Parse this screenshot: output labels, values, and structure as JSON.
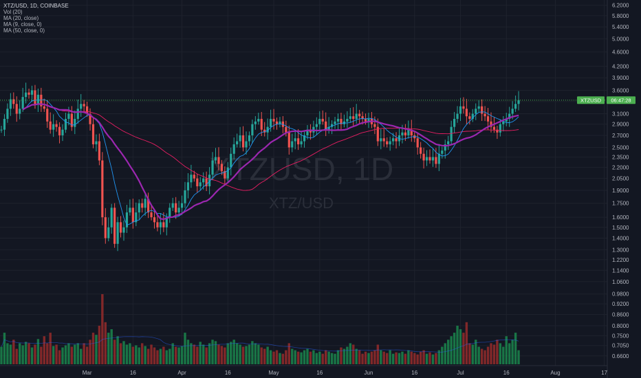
{
  "legend": {
    "title": "XTZ/USD, 1D, COINBASE",
    "vol": "Vol (20)",
    "ma20": "MA (20, close)",
    "ma9": "MA (9, close, 0)",
    "ma50": "MA (50, close, 0)"
  },
  "watermark": {
    "main": "XTZUSD, 1D",
    "sub": "XTZ/USD"
  },
  "price_label": {
    "symbol": "XTZUSD",
    "countdown": "06:47:28",
    "value": 3.38
  },
  "colors": {
    "up": "#26a69a",
    "down": "#ef5350",
    "ma20": "#9c27b0",
    "ma9": "#2196f3",
    "ma50": "#e91e63",
    "bg": "#131722",
    "badge": "#4caf50"
  },
  "chart_data": {
    "type": "candlestick",
    "title": "XTZ/USD, 1D, COINBASE",
    "y_scale": "log",
    "ylim": [
      0.62,
      6.3
    ],
    "y_ticks": [
      6.2,
      5.8,
      5.4,
      5.0,
      4.6,
      4.2,
      3.9,
      3.6,
      3.35,
      3.1,
      2.9,
      2.7,
      2.5,
      2.35,
      2.2,
      2.05,
      1.9,
      1.75,
      1.6,
      1.5,
      1.4,
      1.3,
      1.22,
      1.14,
      1.06,
      0.98,
      0.92,
      0.86,
      0.8,
      0.75,
      0.705,
      0.66
    ],
    "y_tick_labels": [
      "6.2000",
      "5.8000",
      "5.4000",
      "5.0000",
      "4.6000",
      "4.2000",
      "3.9000",
      "3.6000",
      "3.3500",
      "3.1000",
      "2.9000",
      "2.7000",
      "2.5000",
      "2.3500",
      "2.2000",
      "2.0500",
      "1.9000",
      "1.7500",
      "1.6000",
      "1.5000",
      "1.4000",
      "1.3000",
      "1.2200",
      "1.1400",
      "1.0600",
      "0.9800",
      "0.9200",
      "0.8600",
      "0.8000",
      "0.7500",
      "0.7050",
      "0.6600"
    ],
    "x_ticks": [
      {
        "label": "Mar",
        "day": 28
      },
      {
        "label": "16",
        "day": 43
      },
      {
        "label": "Apr",
        "day": 59
      },
      {
        "label": "16",
        "day": 74
      },
      {
        "label": "May",
        "day": 89
      },
      {
        "label": "16",
        "day": 104
      },
      {
        "label": "Jun",
        "day": 120
      },
      {
        "label": "16",
        "day": 135
      },
      {
        "label": "Jul",
        "day": 150
      },
      {
        "label": "16",
        "day": 165
      },
      {
        "label": "Aug",
        "day": 181
      },
      {
        "label": "17",
        "day": 197
      }
    ],
    "start_close": 2.8,
    "closes": [
      2.8,
      3.0,
      3.2,
      3.4,
      3.3,
      3.1,
      3.2,
      3.45,
      3.55,
      3.5,
      3.6,
      3.3,
      3.5,
      3.25,
      3.2,
      2.95,
      2.8,
      2.9,
      2.85,
      2.7,
      2.8,
      3.0,
      3.1,
      2.85,
      3.0,
      3.2,
      3.3,
      3.25,
      3.1,
      2.9,
      2.55,
      2.6,
      2.3,
      1.6,
      1.4,
      1.5,
      1.7,
      1.35,
      1.55,
      1.45,
      1.5,
      1.65,
      1.7,
      1.55,
      1.65,
      1.75,
      1.7,
      1.8,
      1.65,
      1.6,
      1.55,
      1.5,
      1.55,
      1.5,
      1.6,
      1.7,
      1.75,
      1.65,
      1.7,
      1.75,
      1.9,
      2.0,
      2.1,
      2.05,
      1.95,
      2.0,
      2.05,
      1.95,
      2.1,
      2.3,
      2.35,
      2.25,
      2.15,
      2.05,
      2.2,
      2.4,
      2.55,
      2.6,
      2.7,
      2.5,
      2.6,
      2.7,
      2.9,
      2.95,
      3.0,
      2.8,
      2.75,
      2.85,
      3.0,
      2.95,
      2.9,
      2.95,
      2.85,
      2.75,
      2.5,
      2.6,
      2.65,
      2.55,
      2.6,
      2.7,
      2.8,
      2.75,
      2.85,
      2.9,
      3.0,
      2.95,
      2.8,
      2.85,
      2.9,
      2.95,
      3.0,
      2.9,
      2.95,
      3.0,
      3.05,
      3.0,
      3.1,
      3.05,
      3.0,
      2.95,
      3.0,
      2.9,
      2.85,
      2.6,
      2.65,
      2.6,
      2.55,
      2.6,
      2.65,
      2.6,
      2.7,
      2.75,
      2.7,
      2.8,
      2.7,
      2.65,
      2.5,
      2.4,
      2.3,
      2.35,
      2.3,
      2.35,
      2.25,
      2.4,
      2.45,
      2.55,
      2.6,
      2.85,
      3.0,
      3.1,
      3.25,
      3.2,
      3.05,
      3.0,
      3.1,
      3.2,
      3.25,
      3.1,
      3.05,
      2.95,
      2.85,
      2.8,
      2.75,
      2.9,
      2.95,
      3.0,
      3.1,
      3.2,
      3.3,
      3.38
    ],
    "volumes": [
      0.25,
      0.45,
      0.3,
      0.28,
      0.35,
      0.22,
      0.3,
      0.27,
      0.32,
      0.3,
      0.24,
      0.28,
      0.36,
      0.25,
      0.4,
      0.3,
      0.45,
      0.26,
      0.28,
      0.2,
      0.24,
      0.27,
      0.3,
      0.25,
      0.28,
      0.3,
      0.22,
      0.3,
      0.25,
      0.35,
      0.45,
      0.42,
      0.55,
      1.0,
      0.6,
      0.45,
      0.5,
      0.35,
      0.4,
      0.3,
      0.33,
      0.28,
      0.3,
      0.25,
      0.27,
      0.24,
      0.3,
      0.26,
      0.22,
      0.28,
      0.24,
      0.2,
      0.22,
      0.25,
      0.2,
      0.22,
      0.3,
      0.25,
      0.24,
      0.26,
      0.45,
      0.35,
      0.3,
      0.28,
      0.25,
      0.32,
      0.28,
      0.24,
      0.3,
      0.35,
      0.33,
      0.28,
      0.26,
      0.24,
      0.3,
      0.32,
      0.35,
      0.3,
      0.28,
      0.25,
      0.26,
      0.28,
      0.33,
      0.3,
      0.28,
      0.24,
      0.22,
      0.25,
      0.2,
      0.18,
      0.2,
      0.16,
      0.15,
      0.2,
      0.3,
      0.22,
      0.2,
      0.18,
      0.17,
      0.2,
      0.22,
      0.18,
      0.2,
      0.16,
      0.18,
      0.15,
      0.2,
      0.18,
      0.16,
      0.15,
      0.2,
      0.24,
      0.22,
      0.25,
      0.3,
      0.28,
      0.22,
      0.2,
      0.15,
      0.18,
      0.16,
      0.18,
      0.2,
      0.28,
      0.2,
      0.18,
      0.16,
      0.2,
      0.15,
      0.17,
      0.16,
      0.18,
      0.15,
      0.2,
      0.18,
      0.16,
      0.14,
      0.18,
      0.2,
      0.15,
      0.17,
      0.14,
      0.16,
      0.2,
      0.25,
      0.3,
      0.35,
      0.4,
      0.45,
      0.55,
      0.5,
      0.45,
      0.6,
      0.3,
      0.28,
      0.35,
      0.25,
      0.22,
      0.2,
      0.25,
      0.3,
      0.28,
      0.35,
      0.3,
      0.25,
      0.4,
      0.3,
      0.35,
      0.45,
      0.2
    ]
  }
}
